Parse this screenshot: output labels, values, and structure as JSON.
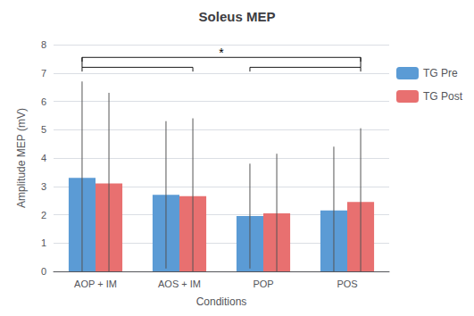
{
  "chart_data": {
    "type": "bar",
    "title": "Soleus MEP",
    "xlabel": "Conditions",
    "ylabel": "Amplitude MEP (mV)",
    "categories": [
      "AOP + IM",
      "AOS + IM",
      "POP",
      "POS"
    ],
    "series": [
      {
        "name": "TG Pre",
        "color": "#5B9BD5",
        "values": [
          3.3,
          2.7,
          1.95,
          2.15
        ],
        "errors": [
          3.4,
          2.6,
          1.85,
          2.25
        ]
      },
      {
        "name": "TG Post",
        "color": "#E87070",
        "values": [
          3.1,
          2.65,
          2.05,
          2.45
        ],
        "errors": [
          3.2,
          2.75,
          2.1,
          2.6
        ]
      }
    ],
    "ylim": [
      0,
      8
    ],
    "yticks": [
      0,
      1,
      2,
      3,
      4,
      5,
      6,
      7,
      8
    ],
    "grid": true,
    "legend": "right",
    "annotations": [
      {
        "text": "*",
        "y": 7.62,
        "bracket_y": 7.55,
        "sub_bracket_y": 7.2,
        "drop": 0.15
      }
    ]
  }
}
